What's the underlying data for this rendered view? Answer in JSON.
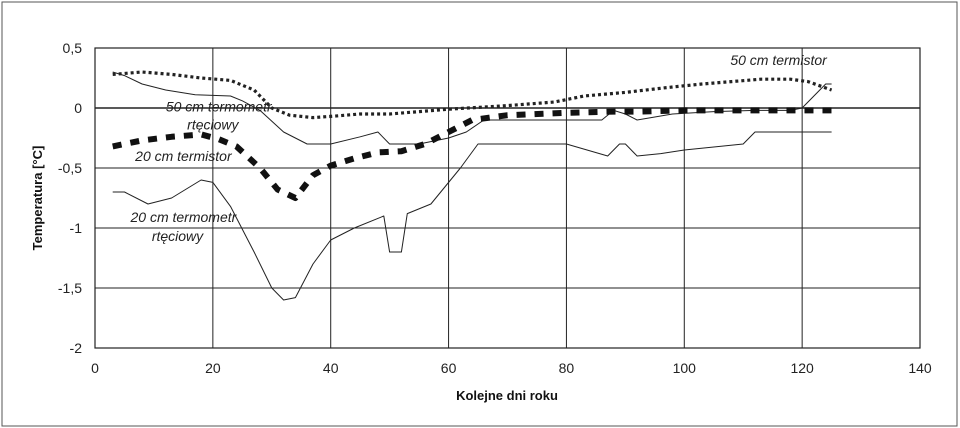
{
  "chart_data": {
    "type": "line",
    "title": "",
    "xlabel": "Kolejne dni roku",
    "ylabel": "Temperatura [°C]",
    "xlim": [
      0,
      140
    ],
    "ylim": [
      -2,
      0.5
    ],
    "xticks": [
      0,
      20,
      40,
      60,
      80,
      100,
      120,
      140
    ],
    "yticks": [
      0.5,
      0,
      -0.5,
      -1,
      -1.5,
      -2
    ],
    "ytick_labels": [
      "0,5",
      "0",
      "-0,5",
      "-1",
      "-1,5",
      "-2"
    ],
    "grid": true,
    "legend": "none",
    "series": [
      {
        "style": "dotted",
        "x": [
          3,
          8,
          13,
          18,
          23,
          27,
          30,
          33,
          37,
          40,
          45,
          50,
          55,
          60,
          70,
          78,
          83,
          90,
          97,
          103,
          108,
          113,
          118,
          121,
          125
        ],
        "y": [
          0.28,
          0.3,
          0.28,
          0.25,
          0.23,
          0.15,
          0.0,
          -0.06,
          -0.08,
          -0.07,
          -0.05,
          -0.05,
          -0.03,
          -0.01,
          0.02,
          0.05,
          0.1,
          0.13,
          0.17,
          0.2,
          0.22,
          0.24,
          0.24,
          0.22,
          0.15
        ]
      },
      {
        "style": "thin",
        "x": [
          3,
          5,
          8,
          12,
          17,
          23,
          25,
          28,
          32,
          36,
          40,
          45,
          48,
          50,
          55,
          60,
          63,
          66,
          70,
          80,
          86,
          88,
          90,
          92,
          98,
          105,
          112,
          118,
          120,
          122,
          124,
          125
        ],
        "y": [
          0.3,
          0.27,
          0.2,
          0.15,
          0.11,
          0.1,
          0.06,
          -0.02,
          -0.2,
          -0.3,
          -0.3,
          -0.24,
          -0.2,
          -0.3,
          -0.3,
          -0.25,
          -0.2,
          -0.1,
          -0.1,
          -0.1,
          -0.1,
          -0.02,
          -0.05,
          -0.1,
          -0.05,
          -0.03,
          -0.02,
          -0.02,
          0.0,
          0.1,
          0.2,
          0.2
        ]
      },
      {
        "style": "dashed-thick",
        "x": [
          3,
          8,
          13,
          18,
          21,
          24,
          28,
          31,
          34,
          37,
          40,
          44,
          48,
          52,
          56,
          60,
          64,
          70,
          80,
          88,
          92,
          100,
          110,
          120,
          125
        ],
        "y": [
          -0.32,
          -0.27,
          -0.24,
          -0.22,
          -0.26,
          -0.32,
          -0.5,
          -0.68,
          -0.75,
          -0.56,
          -0.48,
          -0.42,
          -0.37,
          -0.36,
          -0.3,
          -0.2,
          -0.1,
          -0.06,
          -0.04,
          -0.03,
          -0.03,
          -0.02,
          -0.02,
          -0.02,
          -0.02
        ]
      },
      {
        "style": "thin",
        "x": [
          3,
          5,
          9,
          13,
          18,
          20,
          23,
          27,
          30,
          32,
          34,
          37,
          40,
          44,
          49,
          50,
          52,
          53,
          57,
          62,
          65,
          80,
          87,
          89,
          90,
          92,
          96,
          100,
          110,
          112,
          120,
          125
        ],
        "y": [
          -0.7,
          -0.7,
          -0.8,
          -0.75,
          -0.6,
          -0.62,
          -0.82,
          -1.2,
          -1.5,
          -1.6,
          -1.58,
          -1.3,
          -1.1,
          -1.0,
          -0.9,
          -1.2,
          -1.2,
          -0.88,
          -0.8,
          -0.5,
          -0.3,
          -0.3,
          -0.4,
          -0.3,
          -0.3,
          -0.4,
          -0.38,
          -0.35,
          -0.3,
          -0.2,
          -0.2,
          -0.2
        ]
      }
    ],
    "annotations": [
      {
        "text": "50 cm termistor",
        "x": 116,
        "y": 0.36
      },
      {
        "text": "50 cm termometr",
        "x": 21,
        "y": -0.03
      },
      {
        "text": "rtęciowy",
        "x": 20,
        "y": -0.18
      },
      {
        "text": "20 cm termistor",
        "x": 15,
        "y": -0.44
      },
      {
        "text": "20 cm termometr",
        "x": 15,
        "y": -0.95
      },
      {
        "text": "rtęciowy",
        "x": 14,
        "y": -1.11
      }
    ]
  }
}
